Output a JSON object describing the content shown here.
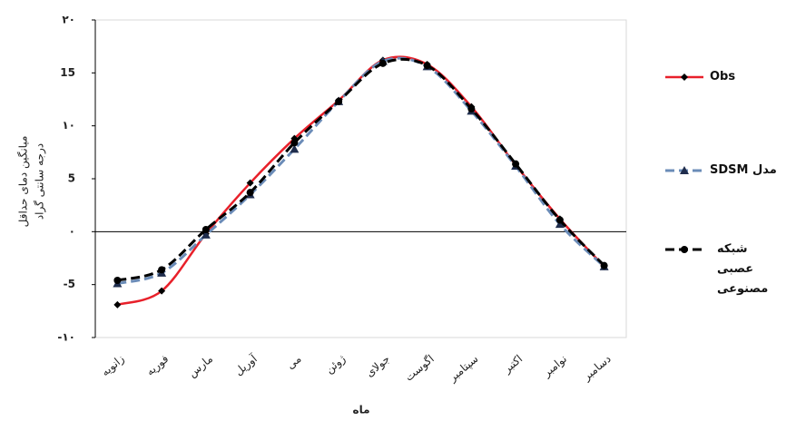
{
  "chart_data": {
    "type": "line",
    "x_label": "ماه",
    "y_label": [
      "میانگین دمای حداقل",
      "درجه سانتی گراد"
    ],
    "categories": [
      "زانویه",
      "فوریه",
      "مارس",
      "آوریل",
      "می",
      "ژوئن",
      "جولای",
      "اگوست",
      "سپتامبر",
      "اکتبر",
      "نوامبر",
      "دسامبر"
    ],
    "series": [
      {
        "name": "Obs",
        "color": "#e8202a",
        "dashed": false,
        "marker": "diamond",
        "values": [
          -6.9,
          -5.6,
          -0.2,
          4.6,
          8.8,
          12.4,
          16.2,
          15.8,
          11.8,
          6.3,
          1.2,
          -3.3
        ]
      },
      {
        "name": "مدل SDSM",
        "color": "#6b8cb8",
        "dashed": true,
        "marker": "triangle",
        "values": [
          -4.9,
          -3.9,
          -0.3,
          3.5,
          7.8,
          12.3,
          16.1,
          15.6,
          11.4,
          6.2,
          0.7,
          -3.3
        ]
      },
      {
        "name": "شبکه عصبی مصنوعی",
        "color": "#000000",
        "dashed": true,
        "marker": "circle",
        "values": [
          -4.6,
          -3.6,
          0.2,
          3.7,
          8.4,
          12.3,
          15.9,
          15.7,
          11.6,
          6.4,
          1.1,
          -3.2
        ]
      }
    ],
    "ylim": [
      -10,
      20
    ],
    "yticks": [
      {
        "value": 20,
        "label": "۲۰"
      },
      15,
      {
        "value": 10,
        "label": "۱۰"
      },
      5,
      {
        "value": 0,
        "label": "۰"
      },
      -5,
      {
        "value": -10,
        "label": "-۱۰"
      }
    ],
    "legend": "right"
  }
}
